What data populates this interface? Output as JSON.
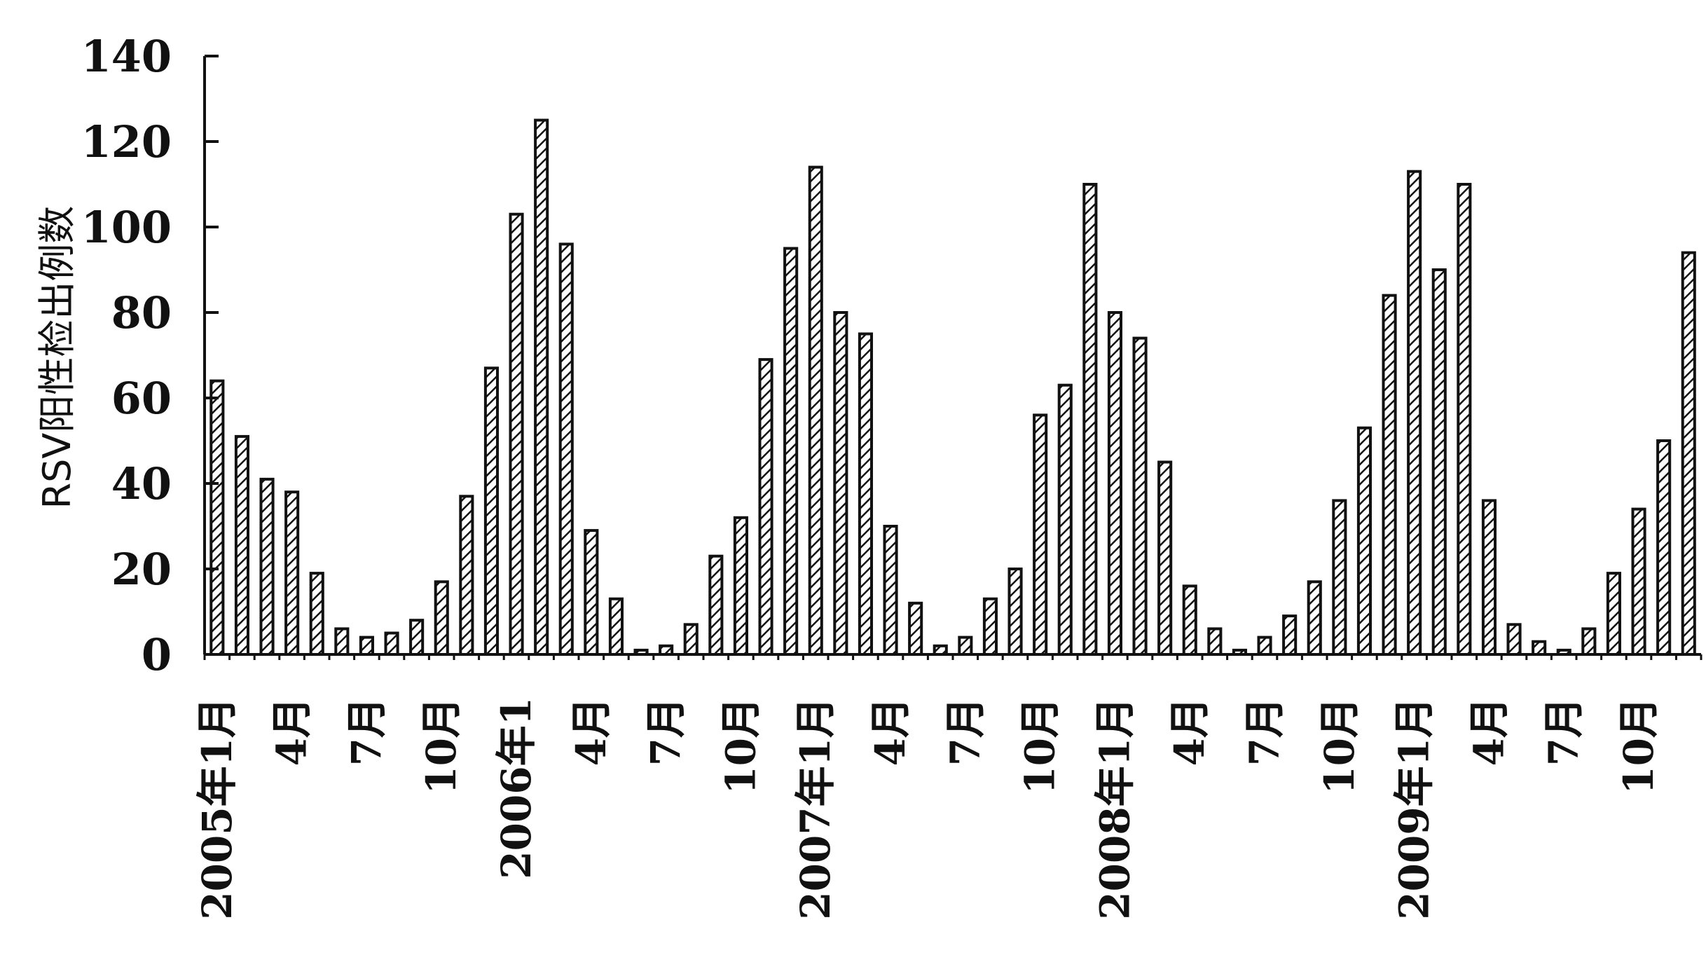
{
  "chart_data": {
    "type": "bar",
    "title": "",
    "xlabel": "",
    "ylabel": "RSV阳性检出例数",
    "ylim": [
      0,
      140
    ],
    "yticks": [
      0,
      20,
      40,
      60,
      80,
      100,
      120,
      140
    ],
    "grid": false,
    "legend": "none",
    "categories": [
      "2005年1月",
      "2005年2月",
      "2005年3月",
      "2005年4月",
      "2005年5月",
      "2005年6月",
      "2005年7月",
      "2005年8月",
      "2005年9月",
      "2005年10月",
      "2005年11月",
      "2005年12月",
      "2006年1月",
      "2006年2月",
      "2006年3月",
      "2006年4月",
      "2006年5月",
      "2006年6月",
      "2006年7月",
      "2006年8月",
      "2006年9月",
      "2006年10月",
      "2006年11月",
      "2006年12月",
      "2007年1月",
      "2007年2月",
      "2007年3月",
      "2007年4月",
      "2007年5月",
      "2007年6月",
      "2007年7月",
      "2007年8月",
      "2007年9月",
      "2007年10月",
      "2007年11月",
      "2007年12月",
      "2008年1月",
      "2008年2月",
      "2008年3月",
      "2008年4月",
      "2008年5月",
      "2008年6月",
      "2008年7月",
      "2008年8月",
      "2008年9月",
      "2008年10月",
      "2008年11月",
      "2008年12月",
      "2009年1月",
      "2009年2月",
      "2009年3月",
      "2009年4月",
      "2009年5月",
      "2009年6月",
      "2009年7月",
      "2009年8月",
      "2009年9月",
      "2009年10月",
      "2009年11月",
      "2009年12月"
    ],
    "values": [
      64,
      51,
      41,
      38,
      19,
      6,
      4,
      5,
      8,
      17,
      37,
      67,
      103,
      125,
      96,
      29,
      13,
      1,
      2,
      7,
      23,
      32,
      69,
      95,
      114,
      80,
      75,
      30,
      12,
      2,
      4,
      13,
      20,
      56,
      63,
      110,
      80,
      74,
      45,
      16,
      6,
      1,
      4,
      9,
      17,
      36,
      53,
      84,
      113,
      90,
      110,
      36,
      7,
      3,
      1,
      6,
      19,
      34,
      50,
      94
    ],
    "tick_labels": [
      {
        "index": 0,
        "text": "2005年1月"
      },
      {
        "index": 3,
        "text": "4月"
      },
      {
        "index": 6,
        "text": "7月"
      },
      {
        "index": 9,
        "text": "10月"
      },
      {
        "index": 12,
        "text": "2006年1"
      },
      {
        "index": 15,
        "text": "4月"
      },
      {
        "index": 18,
        "text": "7月"
      },
      {
        "index": 21,
        "text": "10月"
      },
      {
        "index": 24,
        "text": "2007年1月"
      },
      {
        "index": 27,
        "text": "4月"
      },
      {
        "index": 30,
        "text": "7月"
      },
      {
        "index": 33,
        "text": "10月"
      },
      {
        "index": 36,
        "text": "2008年1月"
      },
      {
        "index": 39,
        "text": "4月"
      },
      {
        "index": 42,
        "text": "7月"
      },
      {
        "index": 45,
        "text": "10月"
      },
      {
        "index": 48,
        "text": "2009年1月"
      },
      {
        "index": 51,
        "text": "4月"
      },
      {
        "index": 54,
        "text": "7月"
      },
      {
        "index": 57,
        "text": "10月"
      }
    ],
    "colors": {
      "bar_fill": "#ffffff",
      "bar_stroke": "#111111",
      "hatch": "#111111",
      "axis": "#111111"
    }
  }
}
